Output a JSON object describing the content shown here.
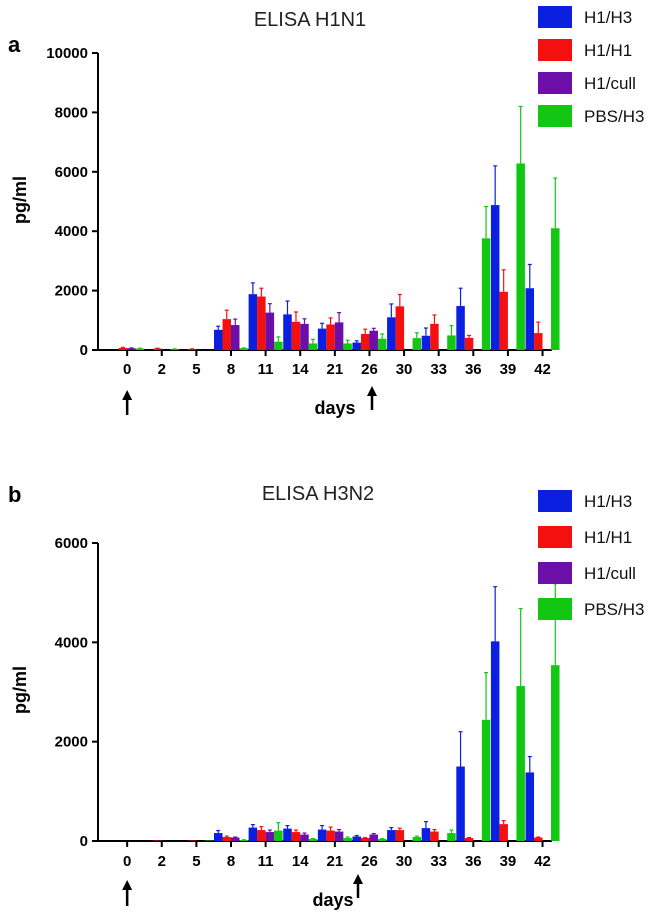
{
  "chart_data": [
    {
      "panel": "a",
      "type": "bar",
      "title": "ELISA H1N1",
      "xlabel": "days",
      "ylabel": "pg/ml",
      "ylim": [
        0,
        10000
      ],
      "yticks": [
        "0",
        "2000",
        "4000",
        "6000",
        "8000",
        "10000"
      ],
      "categories": [
        "0",
        "2",
        "5",
        "8",
        "11",
        "14",
        "21",
        "26",
        "30",
        "33",
        "36",
        "39",
        "42"
      ],
      "arrows_at": [
        "0",
        "26-30"
      ],
      "legend_position": "right",
      "series": [
        {
          "name": "H1/H3",
          "color": "#0a1fe0",
          "values": [
            0,
            0,
            0,
            680,
            1880,
            1200,
            720,
            250,
            1100,
            480,
            1480,
            4880,
            2080
          ],
          "errors": [
            0,
            0,
            0,
            120,
            380,
            450,
            180,
            60,
            450,
            260,
            600,
            1320,
            800
          ]
        },
        {
          "name": "H1/H1",
          "color": "#f51010",
          "values": [
            70,
            50,
            30,
            1040,
            1800,
            950,
            860,
            540,
            1470,
            880,
            410,
            1960,
            570
          ],
          "errors": [
            20,
            10,
            10,
            300,
            280,
            330,
            220,
            160,
            400,
            300,
            80,
            740,
            370
          ]
        },
        {
          "name": "H1/cull",
          "color": "#6b0fa8",
          "values": [
            60,
            0,
            0,
            840,
            1260,
            880,
            930,
            650,
            0,
            0,
            0,
            0,
            0
          ],
          "errors": [
            10,
            0,
            0,
            200,
            300,
            170,
            330,
            80,
            0,
            0,
            0,
            0,
            0
          ]
        },
        {
          "name": "PBS/H3",
          "color": "#12c712",
          "values": [
            50,
            30,
            0,
            60,
            280,
            220,
            220,
            380,
            400,
            490,
            3760,
            6280,
            4100
          ],
          "errors": [
            10,
            10,
            0,
            10,
            160,
            140,
            110,
            160,
            180,
            330,
            1070,
            1920,
            1690
          ]
        }
      ]
    },
    {
      "panel": "b",
      "type": "bar",
      "title": "ELISA H3N2",
      "xlabel": "days",
      "ylabel": "pg/ml",
      "ylim": [
        0,
        6000
      ],
      "yticks": [
        "0",
        "2000",
        "4000",
        "6000"
      ],
      "categories": [
        "0",
        "2",
        "5",
        "8",
        "11",
        "14",
        "21",
        "26",
        "30",
        "33",
        "36",
        "39",
        "42"
      ],
      "arrows_at": [
        "0",
        "26-30"
      ],
      "legend_position": "right",
      "series": [
        {
          "name": "H1/H3",
          "color": "#0a1fe0",
          "values": [
            0,
            0,
            0,
            160,
            270,
            250,
            230,
            90,
            220,
            260,
            1500,
            4020,
            1380
          ],
          "errors": [
            0,
            0,
            0,
            50,
            60,
            60,
            80,
            20,
            50,
            130,
            700,
            1100,
            320
          ]
        },
        {
          "name": "H1/H1",
          "color": "#f51010",
          "values": [
            0,
            10,
            10,
            80,
            220,
            180,
            210,
            60,
            220,
            190,
            60,
            340,
            70
          ],
          "errors": [
            0,
            0,
            0,
            20,
            70,
            40,
            70,
            10,
            40,
            40,
            10,
            70,
            10
          ]
        },
        {
          "name": "H1/cull",
          "color": "#6b0fa8",
          "values": [
            0,
            0,
            0,
            70,
            180,
            130,
            190,
            130,
            0,
            0,
            0,
            0,
            0
          ],
          "errors": [
            0,
            0,
            0,
            10,
            40,
            30,
            40,
            20,
            0,
            0,
            0,
            0,
            0
          ]
        },
        {
          "name": "PBS/H3",
          "color": "#12c712",
          "values": [
            0,
            0,
            10,
            20,
            210,
            40,
            60,
            40,
            80,
            160,
            2440,
            3120,
            3540
          ],
          "errors": [
            0,
            0,
            0,
            5,
            160,
            10,
            20,
            10,
            20,
            60,
            950,
            1560,
            1640
          ]
        }
      ]
    }
  ]
}
